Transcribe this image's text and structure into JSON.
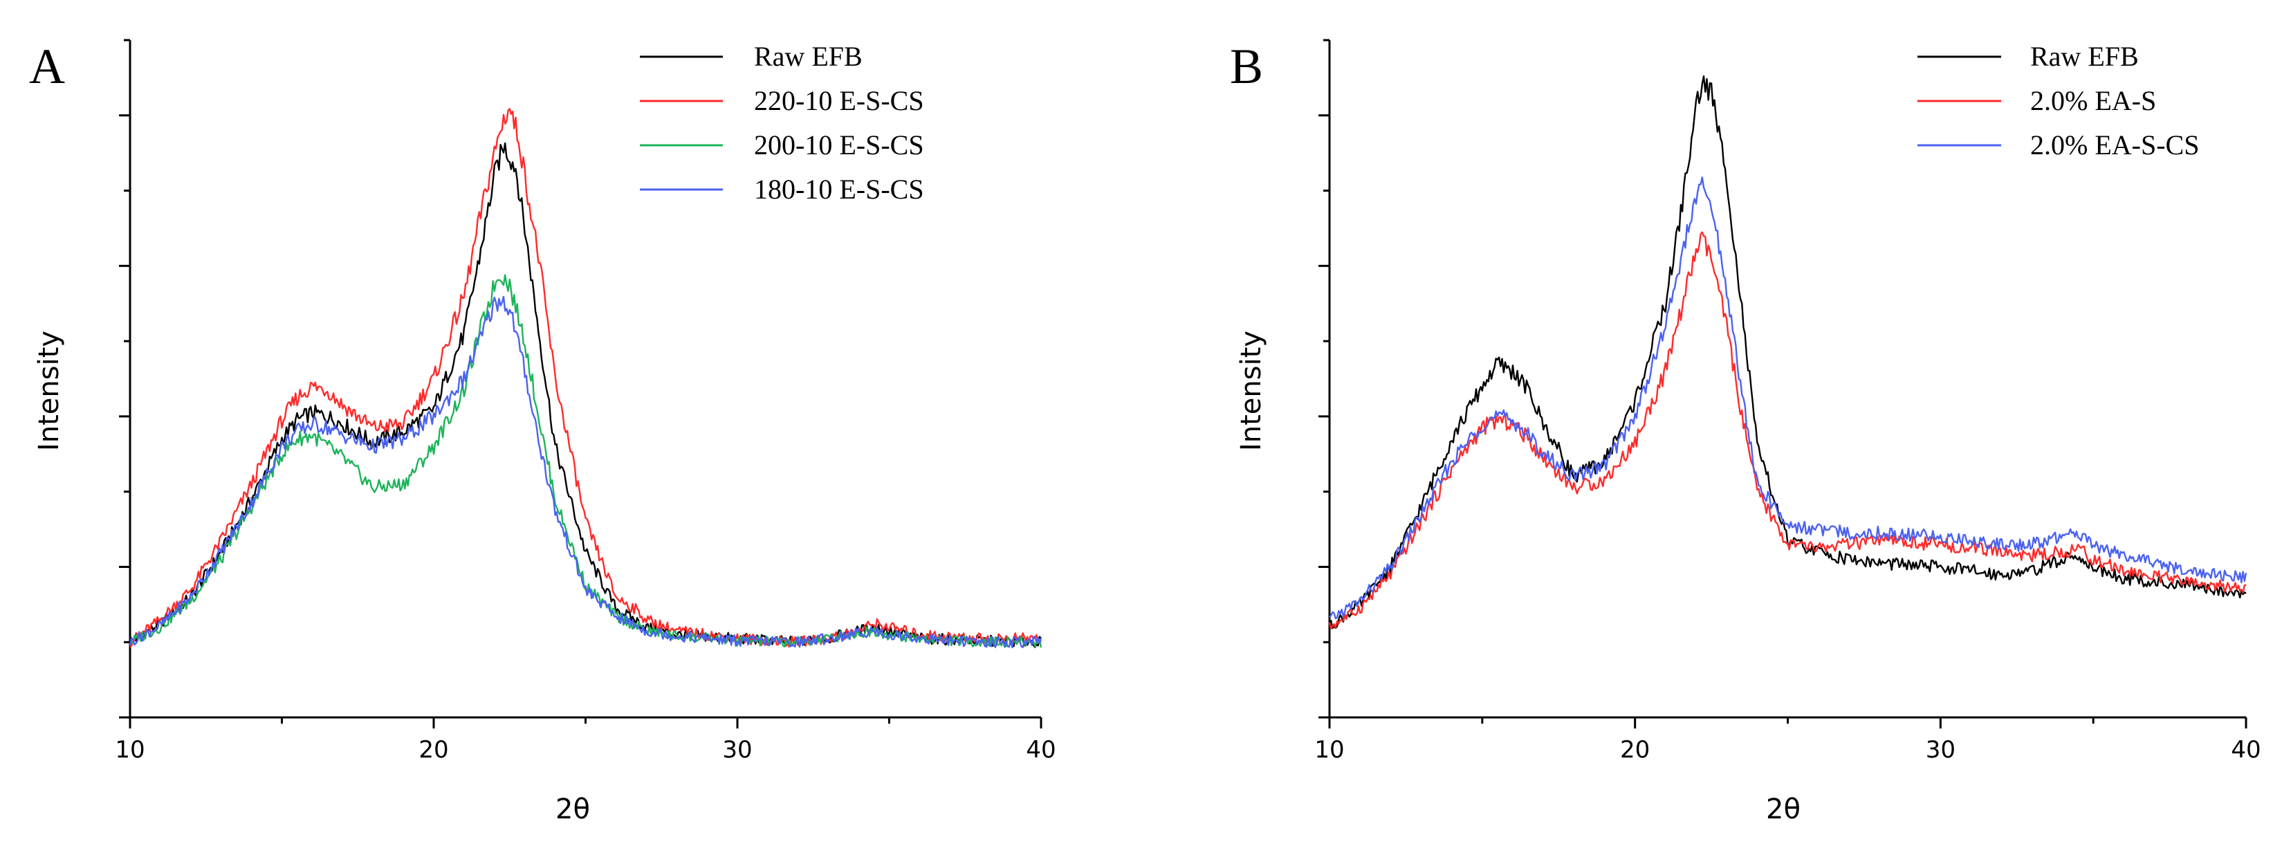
{
  "chart_data": [
    {
      "type": "line",
      "panel_label": "A",
      "title": "",
      "xlabel": "2θ",
      "ylabel": "Intensity",
      "xlim": [
        10,
        40
      ],
      "ylim": [
        0,
        9
      ],
      "xticks": [
        "10",
        "20",
        "30",
        "40"
      ],
      "yticks_count": 9,
      "grid": false,
      "legend_position": "top-right",
      "series": [
        {
          "name": "Raw EFB",
          "color": "#000000",
          "x": [
            10,
            11,
            12,
            13,
            14,
            15,
            15.5,
            16,
            16.5,
            17,
            18,
            19,
            20,
            21,
            21.5,
            22,
            22.3,
            22.7,
            23,
            23.5,
            24,
            25,
            26,
            27,
            28,
            30,
            32,
            33,
            34,
            34.5,
            35,
            36,
            38,
            40
          ],
          "y": [
            1.0,
            1.25,
            1.6,
            2.2,
            2.9,
            3.7,
            3.95,
            4.05,
            4.0,
            3.9,
            3.65,
            3.8,
            4.1,
            5.1,
            6.1,
            7.2,
            7.6,
            7.3,
            6.5,
            5.0,
            3.6,
            2.2,
            1.45,
            1.2,
            1.1,
            1.05,
            1.0,
            1.05,
            1.15,
            1.2,
            1.15,
            1.05,
            1.02,
            1.0
          ]
        },
        {
          "name": "220-10 E-S-CS",
          "color": "#ff2a2a",
          "x": [
            10,
            11,
            12,
            13,
            14,
            15,
            15.5,
            16,
            16.5,
            17,
            18,
            19,
            20,
            21,
            21.5,
            22,
            22.3,
            22.5,
            22.8,
            23,
            23.5,
            24,
            25,
            26,
            26.6,
            27,
            28,
            30,
            32,
            33,
            34,
            34.5,
            35,
            36,
            38,
            40
          ],
          "y": [
            1.0,
            1.3,
            1.7,
            2.35,
            3.1,
            3.95,
            4.25,
            4.4,
            4.35,
            4.15,
            3.85,
            3.9,
            4.5,
            5.6,
            6.6,
            7.5,
            7.95,
            8.1,
            7.7,
            7.2,
            6.0,
            4.5,
            2.6,
            1.6,
            1.45,
            1.3,
            1.15,
            1.05,
            1.0,
            1.05,
            1.15,
            1.25,
            1.2,
            1.1,
            1.05,
            1.05
          ]
        },
        {
          "name": "200-10 E-S-CS",
          "color": "#1db45a",
          "x": [
            10,
            11,
            12,
            13,
            14,
            15,
            15.5,
            16,
            16.5,
            17,
            18,
            19,
            20,
            21,
            21.5,
            22,
            22.2,
            22.5,
            23,
            23.5,
            24,
            25,
            26,
            27,
            28,
            30,
            32,
            33,
            34,
            34.5,
            35,
            36,
            38,
            40
          ],
          "y": [
            1.0,
            1.2,
            1.55,
            2.1,
            2.8,
            3.5,
            3.7,
            3.75,
            3.6,
            3.45,
            3.05,
            3.1,
            3.6,
            4.35,
            5.1,
            5.75,
            5.9,
            5.75,
            5.0,
            3.9,
            2.9,
            1.75,
            1.35,
            1.15,
            1.08,
            1.02,
            1.0,
            1.05,
            1.12,
            1.15,
            1.1,
            1.05,
            1.0,
            1.0
          ]
        },
        {
          "name": "180-10 E-S-CS",
          "color": "#4b62f0",
          "x": [
            10,
            11,
            12,
            13,
            14,
            15,
            15.5,
            16,
            16.5,
            17,
            18,
            19,
            20,
            21,
            21.5,
            22,
            22.3,
            22.6,
            23,
            23.5,
            24,
            25,
            26,
            27,
            28,
            30,
            32,
            33,
            34,
            34.5,
            35,
            36,
            38,
            40
          ],
          "y": [
            1.0,
            1.22,
            1.6,
            2.2,
            2.85,
            3.6,
            3.8,
            3.9,
            3.85,
            3.75,
            3.6,
            3.7,
            4.0,
            4.5,
            5.0,
            5.5,
            5.55,
            5.3,
            4.6,
            3.6,
            2.75,
            1.7,
            1.35,
            1.15,
            1.08,
            1.02,
            1.0,
            1.05,
            1.12,
            1.15,
            1.1,
            1.05,
            1.0,
            1.0
          ]
        }
      ]
    },
    {
      "type": "line",
      "panel_label": "B",
      "title": "",
      "xlabel": "2θ",
      "ylabel": "Intensity",
      "xlim": [
        10,
        40
      ],
      "ylim": [
        0,
        9
      ],
      "xticks": [
        "10",
        "20",
        "30",
        "40"
      ],
      "yticks_count": 9,
      "grid": false,
      "legend_position": "top-right",
      "series": [
        {
          "name": "Raw EFB",
          "color": "#000000",
          "x": [
            10,
            11,
            12,
            13,
            14,
            15,
            15.5,
            16,
            16.5,
            17,
            18,
            19,
            20,
            21,
            21.5,
            22,
            22.2,
            22.5,
            23,
            23.5,
            24,
            25,
            26,
            27,
            28,
            30,
            32,
            33,
            34,
            34.5,
            35,
            36,
            38,
            40
          ],
          "y": [
            1.2,
            1.5,
            2.0,
            2.8,
            3.7,
            4.4,
            4.7,
            4.6,
            4.35,
            3.9,
            3.2,
            3.4,
            4.2,
            5.5,
            6.7,
            8.1,
            8.45,
            8.3,
            7.2,
            5.4,
            3.6,
            2.35,
            2.2,
            2.1,
            2.05,
            2.0,
            1.9,
            1.95,
            2.1,
            2.15,
            2.0,
            1.85,
            1.75,
            1.65
          ]
        },
        {
          "name": "2.0% EA-S",
          "color": "#ff2a2a",
          "x": [
            10,
            11,
            12,
            13,
            14,
            15,
            15.5,
            16,
            16.5,
            17,
            18,
            19,
            20,
            21,
            21.5,
            22,
            22.2,
            22.5,
            23,
            23.5,
            24,
            25,
            26,
            27,
            28,
            30,
            32,
            33,
            34,
            34.5,
            35,
            36,
            38,
            40
          ],
          "y": [
            1.2,
            1.45,
            1.9,
            2.6,
            3.3,
            3.85,
            3.95,
            3.9,
            3.7,
            3.45,
            3.05,
            3.15,
            3.65,
            4.6,
            5.4,
            6.2,
            6.35,
            6.1,
            5.2,
            4.0,
            3.0,
            2.3,
            2.25,
            2.3,
            2.35,
            2.3,
            2.2,
            2.15,
            2.2,
            2.25,
            2.1,
            1.95,
            1.8,
            1.7
          ]
        },
        {
          "name": "2.0% EA-S-CS",
          "color": "#4b62f0",
          "x": [
            10,
            11,
            12,
            13,
            14,
            15,
            15.5,
            16,
            16.5,
            17,
            18,
            19,
            20,
            21,
            21.5,
            22,
            22.2,
            22.5,
            23,
            23.5,
            24,
            25,
            26,
            27,
            28,
            30,
            32,
            33,
            34,
            34.5,
            35,
            36,
            38,
            40
          ],
          "y": [
            1.3,
            1.55,
            2.0,
            2.7,
            3.4,
            3.9,
            4.0,
            3.95,
            3.75,
            3.5,
            3.2,
            3.35,
            4.0,
            5.2,
            6.1,
            6.9,
            7.05,
            6.8,
            5.7,
            4.3,
            3.1,
            2.55,
            2.5,
            2.45,
            2.45,
            2.4,
            2.3,
            2.3,
            2.4,
            2.45,
            2.3,
            2.15,
            1.95,
            1.85
          ]
        }
      ]
    }
  ]
}
